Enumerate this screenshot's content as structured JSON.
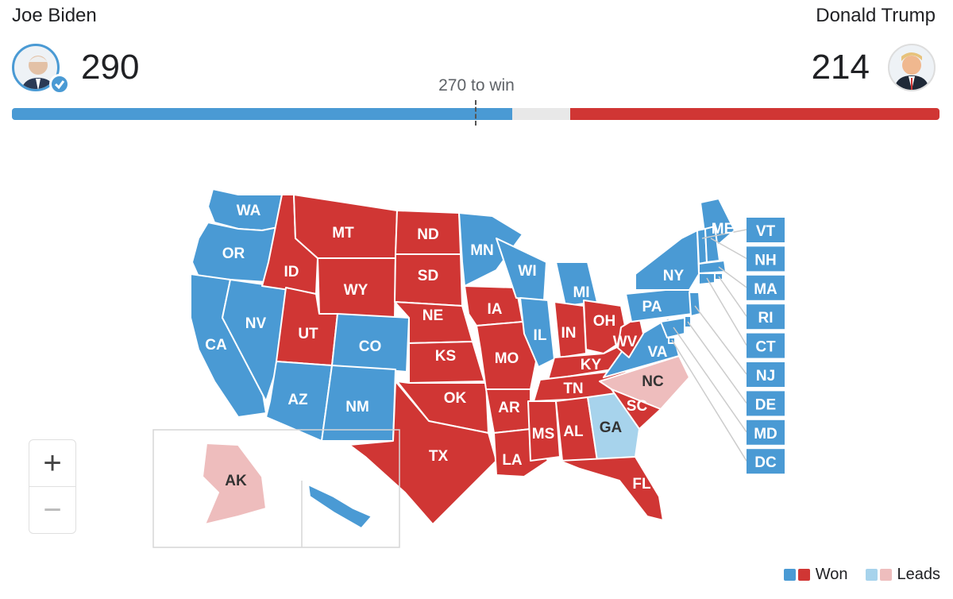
{
  "header": {
    "left": {
      "name": "Joe Biden",
      "votes": "290"
    },
    "right": {
      "name": "Donald Trump",
      "votes": "214"
    },
    "threshold_label": "270 to win"
  },
  "tally": {
    "total": 538,
    "left": 290,
    "right": 214,
    "threshold": 270
  },
  "colors": {
    "blue_won": "#4a9ad4",
    "red_won": "#d03634",
    "blue_lead": "#a7d3ec",
    "red_lead": "#eebdbd",
    "undecided": "#e8e8e8"
  },
  "states": {
    "WA": "bw",
    "OR": "bw",
    "CA": "bw",
    "NV": "bw",
    "ID": "rw",
    "MT": "rw",
    "WY": "rw",
    "UT": "rw",
    "CO": "bw",
    "AZ": "bw",
    "NM": "bw",
    "ND": "rw",
    "SD": "rw",
    "NE": "rw",
    "KS": "rw",
    "OK": "rw",
    "TX": "rw",
    "MN": "bw",
    "IA": "rw",
    "MO": "rw",
    "AR": "rw",
    "LA": "rw",
    "WI": "bw",
    "IL": "bw",
    "MI": "bw",
    "IN": "rw",
    "OH": "rw",
    "KY": "rw",
    "TN": "rw",
    "MS": "rw",
    "AL": "rw",
    "GA": "bl",
    "FL": "rw",
    "SC": "rw",
    "NC": "rl",
    "VA": "bw",
    "WV": "rw",
    "PA": "bw",
    "NY": "bw",
    "ME": "bw",
    "AK": "rl",
    "HI": "bw",
    "VT": "bw",
    "NH": "bw",
    "MA": "bw",
    "RI": "bw",
    "CT": "bw",
    "NJ": "bw",
    "DE": "bw",
    "MD": "bw",
    "DC": "bw"
  },
  "callouts": [
    "VT",
    "NH",
    "MA",
    "RI",
    "CT",
    "NJ",
    "DE",
    "MD",
    "DC"
  ],
  "zoom": {
    "in_label": "+",
    "out_label": "−"
  },
  "legend": {
    "won": "Won",
    "leads": "Leads"
  }
}
